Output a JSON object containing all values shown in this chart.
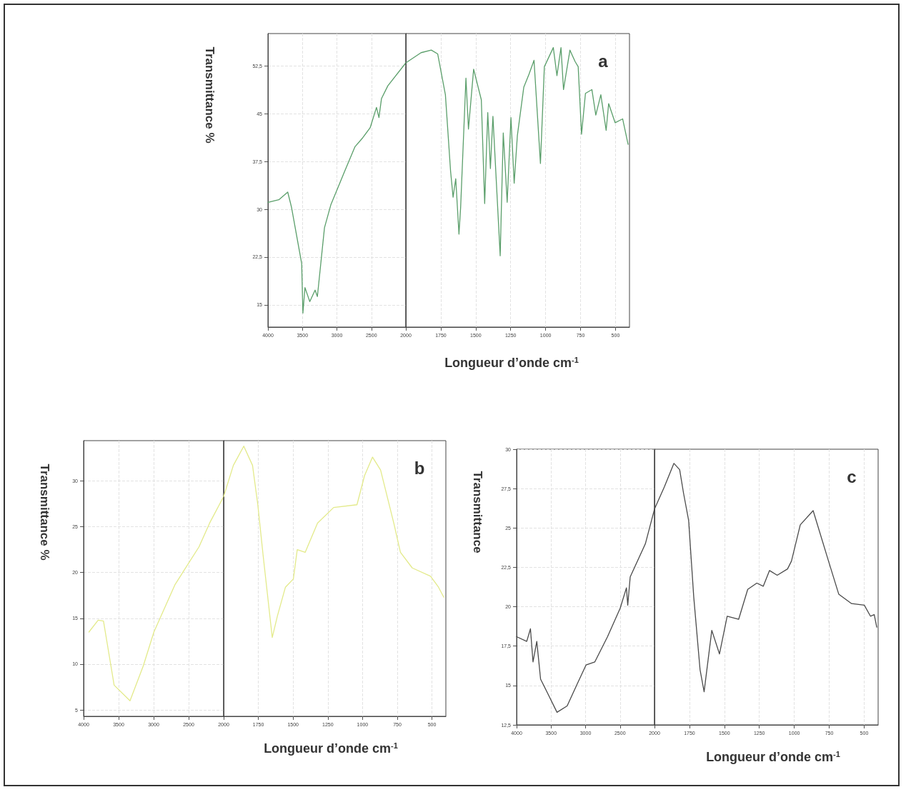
{
  "chart_data": [
    {
      "type": "line",
      "ylabel": "Transmittance %",
      "xlim": [
        4000,
        2000
      ],
      "ylim": [
        11.5,
        57.6
      ],
      "xticks": [
        4000,
        3500,
        3000,
        2500,
        2000
      ],
      "yticks": [
        15,
        {
          "value": 22.5,
          "label": "22,5"
        },
        30,
        {
          "value": 37.5,
          "label": "37,5"
        },
        45,
        {
          "value": 52.5,
          "label": "52,5"
        }
      ],
      "grid": true,
      "x": [
        4000,
        3842,
        3713,
        3676,
        3658,
        3511,
        3493,
        3463,
        3393,
        3316,
        3283,
        3180,
        3088,
        2886,
        2739,
        2628,
        2518,
        2426,
        2390,
        2353,
        2261,
        2000
      ],
      "series": [
        {
          "color": "#5a9e6a",
          "values": [
            31.1,
            31.5,
            32.7,
            31.1,
            30.3,
            21.5,
            13.7,
            17.7,
            15.5,
            17.3,
            16.3,
            27.1,
            30.7,
            36.0,
            39.8,
            41.2,
            42.8,
            46.0,
            44.4,
            47.4,
            49.4,
            53.0
          ]
        }
      ]
    },
    {
      "type": "line",
      "xlabel": "Longueur d’onde cm$^{-1}$",
      "annotations": [
        "a"
      ],
      "tick_labels": "x",
      "xlim": [
        2000,
        400
      ],
      "ylim": [
        11.5,
        57.6
      ],
      "xticks": [
        1750,
        1500,
        1250,
        1000,
        750,
        500
      ],
      "grid": true,
      "x": [
        2000,
        1891,
        1818,
        1772,
        1717,
        1680,
        1662,
        1643,
        1620,
        1608,
        1570,
        1552,
        1515,
        1460,
        1436,
        1414,
        1395,
        1377,
        1325,
        1303,
        1275,
        1248,
        1225,
        1202,
        1156,
        1119,
        1083,
        1037,
        1009,
        945,
        919,
        890,
        872,
        826,
        789,
        767,
        743,
        715,
        669,
        641,
        605,
        567,
        549,
        503,
        449,
        410
      ],
      "series": [
        {
          "color": "#5a9e6a",
          "values": [
            53.0,
            54.6,
            55.0,
            54.4,
            48.0,
            36.0,
            31.9,
            34.8,
            26.1,
            30.3,
            50.6,
            42.6,
            52.0,
            47.2,
            30.9,
            45.2,
            36.4,
            44.6,
            22.7,
            42.0,
            31.1,
            44.4,
            34.1,
            41.6,
            49.2,
            51.2,
            53.4,
            37.2,
            52.4,
            55.4,
            51.0,
            55.4,
            48.8,
            55.0,
            53.2,
            52.4,
            41.8,
            48.2,
            48.8,
            44.8,
            48.0,
            42.4,
            46.6,
            43.6,
            44.2,
            40.2
          ]
        }
      ]
    },
    {
      "type": "line",
      "ylabel": "Transmittance %",
      "xlim": [
        4000,
        2000
      ],
      "ylim": [
        4.3,
        34.4
      ],
      "xticks": [
        4000,
        3500,
        3000,
        2500,
        2000
      ],
      "yticks": [
        5,
        10,
        15,
        20,
        25,
        30
      ],
      "grid": true,
      "x": [
        3924,
        3792,
        3716,
        3640,
        3564,
        3337,
        3148,
        2996,
        2693,
        2352,
        2200,
        2000
      ],
      "series": [
        {
          "color": "#e3ea8a",
          "values": [
            13.5,
            14.8,
            14.7,
            11.2,
            7.7,
            6.0,
            9.8,
            13.5,
            18.7,
            22.8,
            25.4,
            28.3
          ]
        }
      ]
    },
    {
      "type": "line",
      "xlabel": "Longueur d’onde cm$^{-1}$",
      "annotations": [
        "b"
      ],
      "tick_labels": "x",
      "xlim": [
        2000,
        400
      ],
      "ylim": [
        4.3,
        34.4
      ],
      "xticks": [
        1750,
        1500,
        1250,
        1000,
        750,
        500
      ],
      "grid": true,
      "x": [
        2000,
        1930,
        1855,
        1792,
        1754,
        1716,
        1650,
        1612,
        1555,
        1498,
        1470,
        1413,
        1324,
        1208,
        1040,
        985,
        928,
        870,
        775,
        727,
        642,
        510,
        453,
        415
      ],
      "series": [
        {
          "color": "#e3ea8a",
          "values": [
            28.3,
            31.7,
            33.8,
            31.7,
            27.4,
            21.9,
            12.9,
            15.3,
            18.4,
            19.3,
            22.5,
            22.2,
            25.4,
            27.1,
            27.4,
            30.6,
            32.6,
            31.2,
            25.4,
            22.2,
            20.5,
            19.6,
            18.4,
            17.3
          ]
        }
      ]
    },
    {
      "type": "line",
      "ylabel": "Transmittance",
      "xlim": [
        4000,
        2000
      ],
      "ylim": [
        12.5,
        30
      ],
      "xticks": [
        4000,
        3500,
        3000,
        2500,
        2000
      ],
      "yticks": [
        {
          "value": 12.5,
          "label": "12,5"
        },
        15,
        {
          "value": 17.5,
          "label": "17,5"
        },
        20,
        {
          "value": 22.5,
          "label": "22,5"
        },
        25,
        {
          "value": 27.5,
          "label": "27,5"
        },
        30
      ],
      "grid": true,
      "x": [
        4000,
        3853,
        3799,
        3762,
        3707,
        3652,
        3560,
        3414,
        3267,
        3121,
        2993,
        2865,
        2681,
        2498,
        2407,
        2388,
        2352,
        2132,
        2000
      ],
      "series": [
        {
          "color": "#4a4a4a",
          "values": [
            18.1,
            17.8,
            18.6,
            16.5,
            17.8,
            15.4,
            14.6,
            13.3,
            13.7,
            15.1,
            16.3,
            16.5,
            18.1,
            19.9,
            21.2,
            20.1,
            21.9,
            24.0,
            26.2
          ]
        }
      ]
    },
    {
      "type": "line",
      "xlabel": "Longueur d’onde cm$^{-1}$",
      "annotations": [
        "c"
      ],
      "tick_labels": "x",
      "xlim": [
        2000,
        400
      ],
      "ylim": [
        12.5,
        30
      ],
      "xticks": [
        1750,
        1500,
        1250,
        1000,
        750,
        500
      ],
      "grid": true,
      "x": [
        2000,
        1930,
        1861,
        1820,
        1792,
        1756,
        1719,
        1674,
        1645,
        1590,
        1535,
        1480,
        1398,
        1333,
        1268,
        1222,
        1177,
        1122,
        1048,
        1020,
        957,
        865,
        755,
        682,
        590,
        499,
        455,
        428,
        410
      ],
      "series": [
        {
          "color": "#4a4a4a",
          "values": [
            26.2,
            27.6,
            29.1,
            28.7,
            27.2,
            25.5,
            20.6,
            16.0,
            14.6,
            18.5,
            17.0,
            19.4,
            19.2,
            21.1,
            21.5,
            21.3,
            22.3,
            22.0,
            22.4,
            22.9,
            25.2,
            26.1,
            22.9,
            20.8,
            20.2,
            20.1,
            19.4,
            19.5,
            18.7
          ]
        }
      ]
    }
  ]
}
